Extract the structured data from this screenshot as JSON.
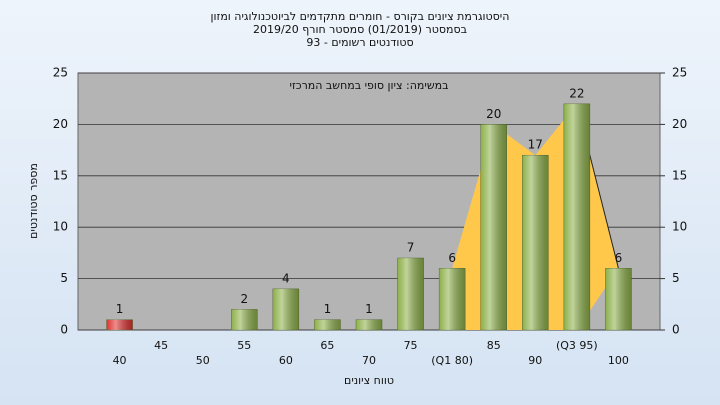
{
  "chart_data": {
    "type": "bar",
    "title": "היסטוגרמת ציונים בקורס - חומרים מתקדמים לביוטכנולוגיה ומזון",
    "subtitle": "בסמסטר  (01/2019)  סמסטר חורף 2019/20",
    "subtitle2": "סטודנטים רשומים - 93",
    "annotation": "במשימה: ציון סופי במחשב המרכזי",
    "x_label": "טווח ציונים",
    "y_label": "מספר סטודנטים",
    "categories": [
      "40",
      "45",
      "50",
      "55",
      "60",
      "65",
      "70",
      "75",
      "(Q1 80)",
      "85",
      "90",
      "(Q3 95)",
      "100"
    ],
    "values": [
      1,
      0,
      0,
      2,
      4,
      1,
      1,
      7,
      6,
      20,
      17,
      22,
      6
    ],
    "colors": [
      "#e03030",
      "#8db04a",
      "#8db04a",
      "#8db04a",
      "#8db04a",
      "#8db04a",
      "#8db04a",
      "#8db04a",
      "#8db04a",
      "#8db04a",
      "#8db04a",
      "#8db04a",
      "#8db04a"
    ],
    "area_color": "#ffc84a",
    "ylim": [
      0,
      25
    ],
    "yticks": [
      0,
      5,
      10,
      15,
      20,
      25
    ],
    "y2lim": [
      0,
      25
    ],
    "y2ticks": [
      0,
      5,
      10,
      15,
      20,
      25
    ],
    "grid": true
  }
}
